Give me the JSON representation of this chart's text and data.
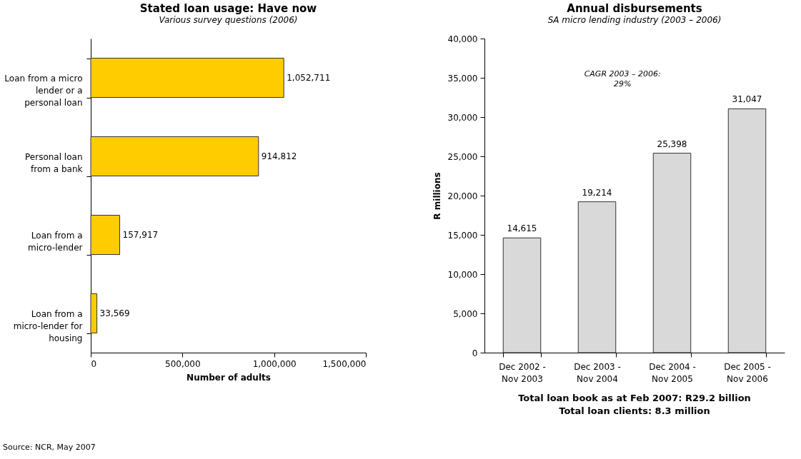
{
  "chart_data": [
    {
      "type": "bar",
      "orientation": "horizontal",
      "title": "Stated loan usage: Have now",
      "subtitle": "Various survey questions (2006)",
      "xlabel": "Number of adults",
      "categories": [
        "Loan from a micro lender or a personal loan",
        "Personal loan from a bank",
        "Loan from a micro-lender",
        "Loan from a micro-lender for housing"
      ],
      "values": [
        1052711,
        914812,
        157917,
        33569
      ],
      "value_labels": [
        "1,052,711",
        "914,812",
        "157,917",
        "33,569"
      ],
      "color": "#ffcc00",
      "xlim": [
        0,
        1500000
      ],
      "xticks": [
        0,
        {
          "value": 500000,
          "label": "500,000"
        },
        {
          "value": 1000000,
          "label": "1,000,000"
        },
        {
          "value": 1500000,
          "label": "1,500,000"
        }
      ],
      "grid": false,
      "annotations": [
        "Source: NCR, May 2007"
      ]
    },
    {
      "type": "bar",
      "title": "Annual disbursements",
      "subtitle": "SA micro lending industry (2003 – 2006)",
      "ylabel": "R millions",
      "categories": [
        "Dec 2002 - Nov 2003",
        "Dec 2003 - Nov 2004",
        "Dec 2004 - Nov 2005",
        "Dec 2005 - Nov 2006"
      ],
      "values": [
        14615,
        19214,
        25398,
        31047
      ],
      "value_labels": [
        "14,615",
        "19,214",
        "25,398",
        "31,047"
      ],
      "color": "#d9d9d9",
      "ylim": [
        0,
        40000
      ],
      "yticks": [
        0,
        {
          "value": 5000,
          "label": "5,000"
        },
        {
          "value": 10000,
          "label": "10,000"
        },
        {
          "value": 15000,
          "label": "15,000"
        },
        {
          "value": 20000,
          "label": "20,000"
        },
        {
          "value": 25000,
          "label": "25,000"
        },
        {
          "value": 30000,
          "label": "30,000"
        },
        {
          "value": 35000,
          "label": "35,000"
        },
        {
          "value": 40000,
          "label": "40,000"
        }
      ],
      "grid": false,
      "annotations": [
        "CAGR 2003 – 2006: 29%",
        "Total loan book as at Feb 2007: R29.2 billion",
        "Total loan clients: 8.3 million"
      ]
    }
  ]
}
